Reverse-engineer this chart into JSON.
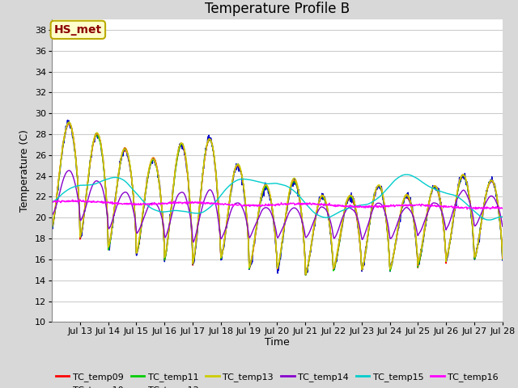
{
  "title": "Temperature Profile B",
  "xlabel": "Time",
  "ylabel": "Temperature (C)",
  "ylim": [
    10,
    39
  ],
  "yticks": [
    10,
    12,
    14,
    16,
    18,
    20,
    22,
    24,
    26,
    28,
    30,
    32,
    34,
    36,
    38
  ],
  "xtick_labels": [
    "Jul 13",
    "Jul 14",
    "Jul 15",
    "Jul 16",
    "Jul 17",
    "Jul 18",
    "Jul 19",
    "Jul 20",
    "Jul 21",
    "Jul 22",
    "Jul 23",
    "Jul 24",
    "Jul 25",
    "Jul 26",
    "Jul 27",
    "Jul 28"
  ],
  "series_colors": {
    "TC_temp09": "#ff0000",
    "TC_temp10": "#0000cc",
    "TC_temp11": "#00cc00",
    "TC_temp12": "#ff8800",
    "TC_temp13": "#cccc00",
    "TC_temp14": "#8800cc",
    "TC_temp15": "#00cccc",
    "TC_temp16": "#ff00ff"
  },
  "annotation_text": "HS_met",
  "annotation_color": "#8B0000",
  "annotation_bg": "#ffffcc",
  "annotation_border": "#bbaa00",
  "bg_color": "#d8d8d8",
  "plot_bg": "#ffffff",
  "grid_color": "#cccccc",
  "title_fontsize": 12,
  "label_fontsize": 9,
  "tick_fontsize": 8
}
